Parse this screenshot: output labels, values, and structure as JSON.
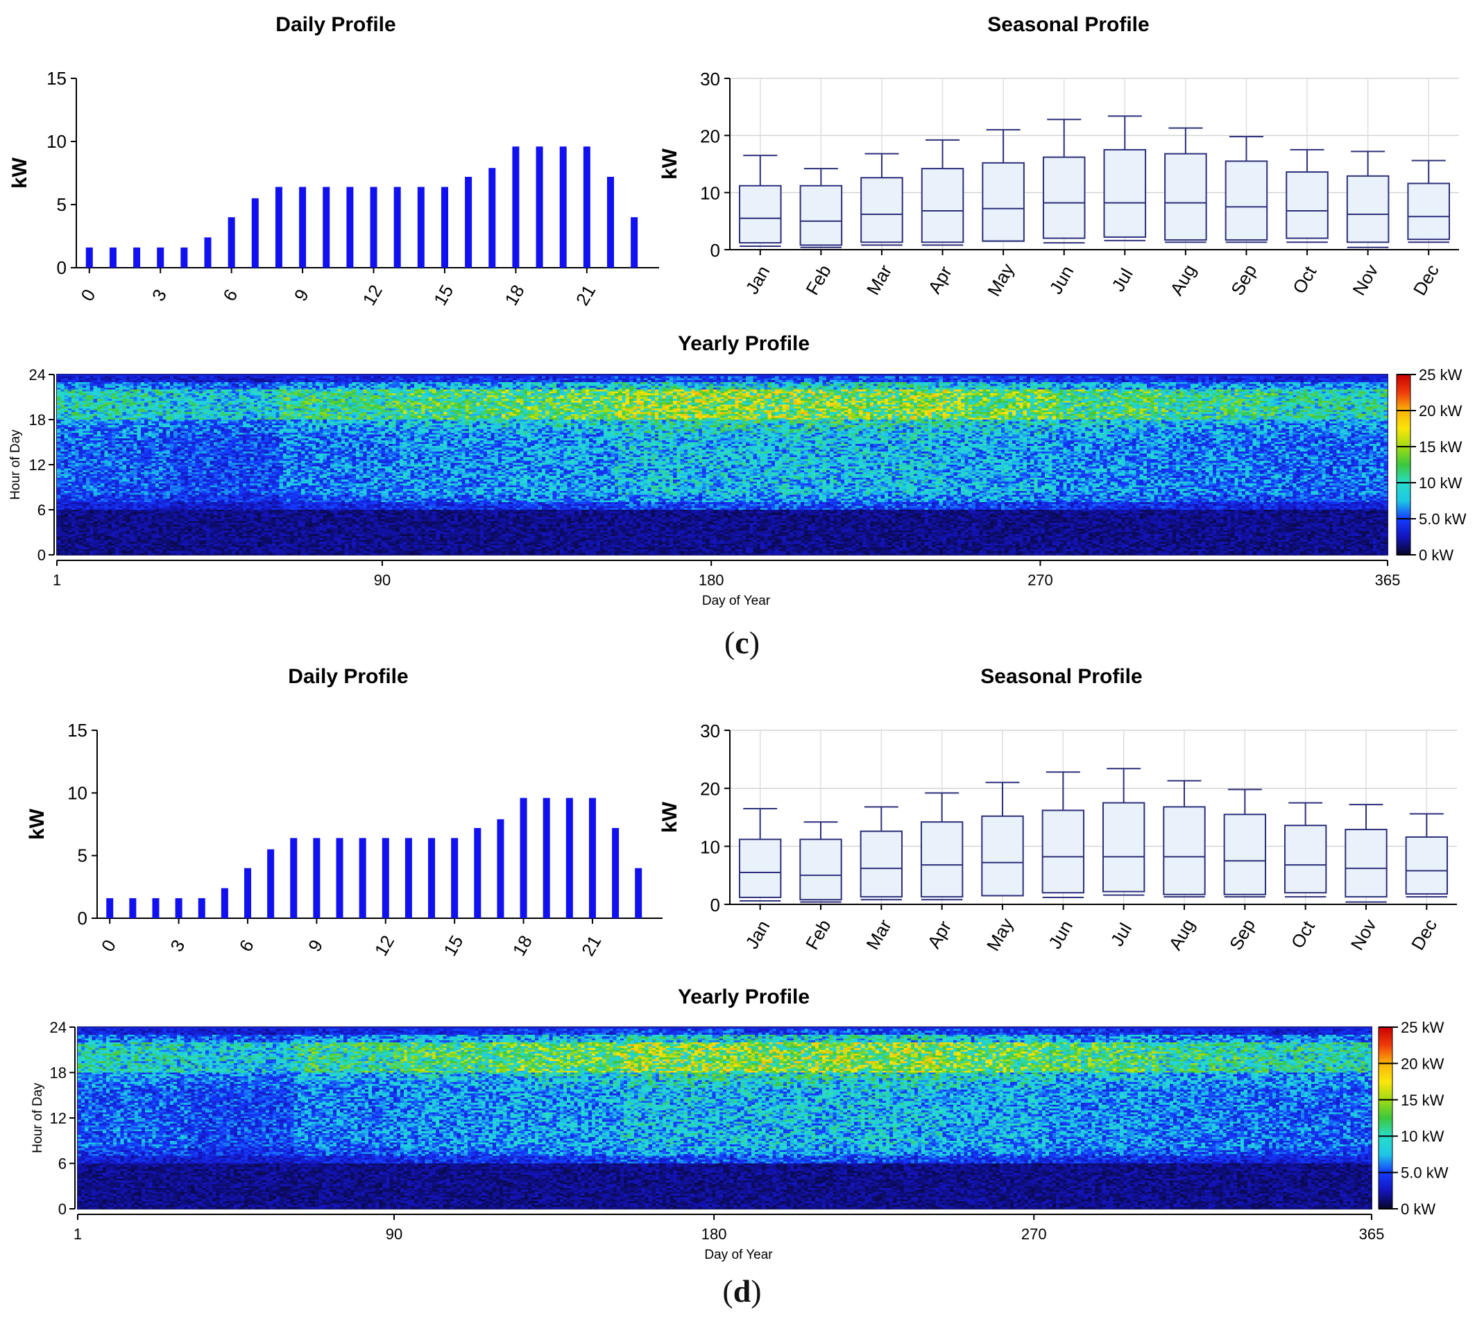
{
  "panels": [
    {
      "label": "c",
      "daily": {
        "type": "bar",
        "title": "Daily Profile",
        "ylabel": "kW",
        "ylim": [
          0,
          15
        ],
        "yticks": [
          0,
          5,
          10,
          15
        ],
        "xticks": [
          0,
          3,
          6,
          9,
          12,
          15,
          18,
          21
        ],
        "hours": [
          0,
          1,
          2,
          3,
          4,
          5,
          6,
          7,
          8,
          9,
          10,
          11,
          12,
          13,
          14,
          15,
          16,
          17,
          18,
          19,
          20,
          21,
          22,
          23
        ],
        "values": [
          1.6,
          1.6,
          1.6,
          1.6,
          1.6,
          2.4,
          4.0,
          5.5,
          6.4,
          6.4,
          6.4,
          6.4,
          6.4,
          6.4,
          6.4,
          6.4,
          7.2,
          7.9,
          9.6,
          9.6,
          9.6,
          9.6,
          7.2,
          4.0
        ],
        "color": "#1010f0"
      },
      "seasonal": {
        "type": "box",
        "title": "Seasonal Profile",
        "ylabel": "kW",
        "ylim": [
          0,
          30
        ],
        "yticks": [
          0,
          10,
          20,
          30
        ],
        "months": [
          "Jan",
          "Feb",
          "Mar",
          "Apr",
          "May",
          "Jun",
          "Jul",
          "Aug",
          "Sep",
          "Oct",
          "Nov",
          "Dec"
        ],
        "boxes": [
          {
            "min": 0.6,
            "q1": 1.2,
            "median": 5.5,
            "q3": 11.2,
            "max": 16.5
          },
          {
            "min": 0.4,
            "q1": 0.8,
            "median": 5.0,
            "q3": 11.2,
            "max": 14.2
          },
          {
            "min": 0.8,
            "q1": 1.3,
            "median": 6.2,
            "q3": 12.6,
            "max": 16.8
          },
          {
            "min": 0.8,
            "q1": 1.3,
            "median": 6.8,
            "q3": 14.2,
            "max": 19.2
          },
          {
            "min": 1.5,
            "q1": 1.5,
            "median": 7.2,
            "q3": 15.2,
            "max": 21.0
          },
          {
            "min": 1.2,
            "q1": 2.0,
            "median": 8.2,
            "q3": 16.2,
            "max": 22.8
          },
          {
            "min": 1.6,
            "q1": 2.2,
            "median": 8.2,
            "q3": 17.5,
            "max": 23.4
          },
          {
            "min": 1.3,
            "q1": 1.7,
            "median": 8.2,
            "q3": 16.8,
            "max": 21.3
          },
          {
            "min": 1.3,
            "q1": 1.7,
            "median": 7.5,
            "q3": 15.5,
            "max": 19.8
          },
          {
            "min": 1.3,
            "q1": 2.0,
            "median": 6.8,
            "q3": 13.6,
            "max": 17.5
          },
          {
            "min": 0.4,
            "q1": 1.3,
            "median": 6.2,
            "q3": 12.9,
            "max": 17.2
          },
          {
            "min": 1.3,
            "q1": 1.8,
            "median": 5.8,
            "q3": 11.6,
            "max": 15.6
          }
        ]
      },
      "yearly": {
        "type": "heatmap",
        "title": "Yearly Profile",
        "xlabel": "Day of Year",
        "ylabel": "Hour of Day",
        "xticks": [
          1,
          90,
          180,
          270,
          365
        ],
        "yticks": [
          0,
          6,
          12,
          18,
          24
        ],
        "colorbar_ticks": [
          "0 kW",
          "5.0 kW",
          "10 kW",
          "15 kW",
          "20 kW",
          "25 kW"
        ],
        "colorbar_range": [
          0,
          25
        ]
      }
    },
    {
      "label": "d",
      "daily": {
        "type": "bar",
        "title": "Daily Profile",
        "ylabel": "kW",
        "ylim": [
          0,
          15
        ],
        "yticks": [
          0,
          5,
          10,
          15
        ],
        "xticks": [
          0,
          3,
          6,
          9,
          12,
          15,
          18,
          21
        ],
        "hours": [
          0,
          1,
          2,
          3,
          4,
          5,
          6,
          7,
          8,
          9,
          10,
          11,
          12,
          13,
          14,
          15,
          16,
          17,
          18,
          19,
          20,
          21,
          22,
          23
        ],
        "values": [
          1.6,
          1.6,
          1.6,
          1.6,
          1.6,
          2.4,
          4.0,
          5.5,
          6.4,
          6.4,
          6.4,
          6.4,
          6.4,
          6.4,
          6.4,
          6.4,
          7.2,
          7.9,
          9.6,
          9.6,
          9.6,
          9.6,
          7.2,
          4.0
        ],
        "color": "#1010f0"
      },
      "seasonal": {
        "type": "box",
        "title": "Seasonal Profile",
        "ylabel": "kW",
        "ylim": [
          0,
          30
        ],
        "yticks": [
          0,
          10,
          20,
          30
        ],
        "months": [
          "Jan",
          "Feb",
          "Mar",
          "Apr",
          "May",
          "Jun",
          "Jul",
          "Aug",
          "Sep",
          "Oct",
          "Nov",
          "Dec"
        ],
        "boxes": [
          {
            "min": 0.6,
            "q1": 1.2,
            "median": 5.5,
            "q3": 11.2,
            "max": 16.5
          },
          {
            "min": 0.4,
            "q1": 0.8,
            "median": 5.0,
            "q3": 11.2,
            "max": 14.2
          },
          {
            "min": 0.8,
            "q1": 1.3,
            "median": 6.2,
            "q3": 12.6,
            "max": 16.8
          },
          {
            "min": 0.8,
            "q1": 1.3,
            "median": 6.8,
            "q3": 14.2,
            "max": 19.2
          },
          {
            "min": 1.5,
            "q1": 1.5,
            "median": 7.2,
            "q3": 15.2,
            "max": 21.0
          },
          {
            "min": 1.2,
            "q1": 2.0,
            "median": 8.2,
            "q3": 16.2,
            "max": 22.8
          },
          {
            "min": 1.6,
            "q1": 2.2,
            "median": 8.2,
            "q3": 17.5,
            "max": 23.4
          },
          {
            "min": 1.3,
            "q1": 1.7,
            "median": 8.2,
            "q3": 16.8,
            "max": 21.3
          },
          {
            "min": 1.3,
            "q1": 1.7,
            "median": 7.5,
            "q3": 15.5,
            "max": 19.8
          },
          {
            "min": 1.3,
            "q1": 2.0,
            "median": 6.8,
            "q3": 13.6,
            "max": 17.5
          },
          {
            "min": 0.4,
            "q1": 1.3,
            "median": 6.2,
            "q3": 12.9,
            "max": 17.2
          },
          {
            "min": 1.3,
            "q1": 1.8,
            "median": 5.8,
            "q3": 11.6,
            "max": 15.6
          }
        ]
      },
      "yearly": {
        "type": "heatmap",
        "title": "Yearly Profile",
        "xlabel": "Day of Year",
        "ylabel": "Hour of Day",
        "xticks": [
          1,
          90,
          180,
          270,
          365
        ],
        "yticks": [
          0,
          6,
          12,
          18,
          24
        ],
        "colorbar_ticks": [
          "0 kW",
          "5.0 kW",
          "10 kW",
          "15 kW",
          "20 kW",
          "25 kW"
        ],
        "colorbar_range": [
          0,
          25
        ]
      }
    }
  ],
  "chart_data": [
    {
      "type": "bar",
      "panel": "c",
      "title": "Daily Profile",
      "xlabel": "",
      "ylabel": "kW",
      "ylim": [
        0,
        15
      ],
      "categories": [
        0,
        1,
        2,
        3,
        4,
        5,
        6,
        7,
        8,
        9,
        10,
        11,
        12,
        13,
        14,
        15,
        16,
        17,
        18,
        19,
        20,
        21,
        22,
        23
      ],
      "values": [
        1.6,
        1.6,
        1.6,
        1.6,
        1.6,
        2.4,
        4.0,
        5.5,
        6.4,
        6.4,
        6.4,
        6.4,
        6.4,
        6.4,
        6.4,
        6.4,
        7.2,
        7.9,
        9.6,
        9.6,
        9.6,
        9.6,
        7.2,
        4.0
      ]
    },
    {
      "type": "box",
      "panel": "c",
      "title": "Seasonal Profile",
      "ylabel": "kW",
      "ylim": [
        0,
        30
      ],
      "categories": [
        "Jan",
        "Feb",
        "Mar",
        "Apr",
        "May",
        "Jun",
        "Jul",
        "Aug",
        "Sep",
        "Oct",
        "Nov",
        "Dec"
      ],
      "medians": [
        5.5,
        5.0,
        6.2,
        6.8,
        7.2,
        8.2,
        8.2,
        8.2,
        7.5,
        6.8,
        6.2,
        5.8
      ],
      "q3": [
        11.2,
        11.2,
        12.6,
        14.2,
        15.2,
        16.2,
        17.5,
        16.8,
        15.5,
        13.6,
        12.9,
        11.6
      ],
      "max": [
        16.5,
        14.2,
        16.8,
        19.2,
        21.0,
        22.8,
        23.4,
        21.3,
        19.8,
        17.5,
        17.2,
        15.6
      ]
    },
    {
      "type": "heatmap",
      "panel": "c",
      "title": "Yearly Profile",
      "xlabel": "Day of Year",
      "ylabel": "Hour of Day",
      "xlim": [
        1,
        365
      ],
      "ylim": [
        0,
        24
      ],
      "color_range_kW": [
        0,
        25
      ]
    },
    {
      "type": "bar",
      "panel": "d",
      "title": "Daily Profile",
      "xlabel": "",
      "ylabel": "kW",
      "ylim": [
        0,
        15
      ],
      "categories": [
        0,
        1,
        2,
        3,
        4,
        5,
        6,
        7,
        8,
        9,
        10,
        11,
        12,
        13,
        14,
        15,
        16,
        17,
        18,
        19,
        20,
        21,
        22,
        23
      ],
      "values": [
        1.6,
        1.6,
        1.6,
        1.6,
        1.6,
        2.4,
        4.0,
        5.5,
        6.4,
        6.4,
        6.4,
        6.4,
        6.4,
        6.4,
        6.4,
        6.4,
        7.2,
        7.9,
        9.6,
        9.6,
        9.6,
        9.6,
        7.2,
        4.0
      ]
    },
    {
      "type": "box",
      "panel": "d",
      "title": "Seasonal Profile",
      "ylabel": "kW",
      "ylim": [
        0,
        30
      ],
      "categories": [
        "Jan",
        "Feb",
        "Mar",
        "Apr",
        "May",
        "Jun",
        "Jul",
        "Aug",
        "Sep",
        "Oct",
        "Nov",
        "Dec"
      ],
      "medians": [
        5.5,
        5.0,
        6.2,
        6.8,
        7.2,
        8.2,
        8.2,
        8.2,
        7.5,
        6.8,
        6.2,
        5.8
      ],
      "q3": [
        11.2,
        11.2,
        12.6,
        14.2,
        15.2,
        16.2,
        17.5,
        16.8,
        15.5,
        13.6,
        12.9,
        11.6
      ],
      "max": [
        16.5,
        14.2,
        16.8,
        19.2,
        21.0,
        22.8,
        23.4,
        21.3,
        19.8,
        17.5,
        17.2,
        15.6
      ]
    },
    {
      "type": "heatmap",
      "panel": "d",
      "title": "Yearly Profile",
      "xlabel": "Day of Year",
      "ylabel": "Hour of Day",
      "xlim": [
        1,
        365
      ],
      "ylim": [
        0,
        24
      ],
      "color_range_kW": [
        0,
        25
      ]
    }
  ]
}
